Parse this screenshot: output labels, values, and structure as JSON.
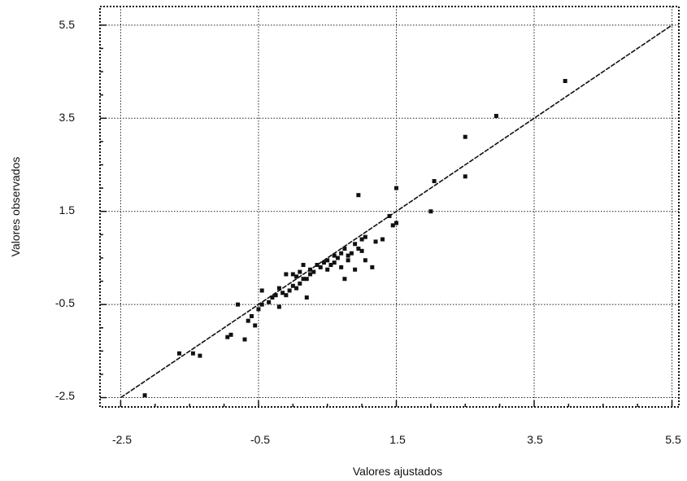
{
  "chart_data": {
    "type": "scatter",
    "title": "",
    "xlabel": "Valores ajustados",
    "ylabel": "Valores observados",
    "xlim": [
      -2.8,
      5.6
    ],
    "ylim": [
      -2.7,
      5.9
    ],
    "xticks": [
      "-2.5",
      "-0.5",
      "1.5",
      "3.5",
      "5.5"
    ],
    "yticks": [
      "5.5",
      "3.5",
      "1.5",
      "-0.5",
      "-2.5"
    ],
    "grid": true,
    "fit_line": {
      "x": [
        -2.5,
        5.5
      ],
      "y": [
        -2.5,
        5.5
      ]
    },
    "series": [
      {
        "points": [
          [
            -2.15,
            -2.45
          ],
          [
            -1.65,
            -1.55
          ],
          [
            -1.45,
            -1.55
          ],
          [
            -1.35,
            -1.6
          ],
          [
            -0.95,
            -1.2
          ],
          [
            -0.9,
            -1.15
          ],
          [
            -0.8,
            -0.5
          ],
          [
            -0.7,
            -1.25
          ],
          [
            -0.65,
            -0.85
          ],
          [
            -0.6,
            -0.75
          ],
          [
            -0.55,
            -0.95
          ],
          [
            -0.5,
            -0.6
          ],
          [
            -0.45,
            -0.5
          ],
          [
            -0.45,
            -0.2
          ],
          [
            -0.35,
            -0.45
          ],
          [
            -0.3,
            -0.35
          ],
          [
            -0.25,
            -0.3
          ],
          [
            -0.2,
            -0.55
          ],
          [
            -0.2,
            -0.15
          ],
          [
            -0.15,
            -0.25
          ],
          [
            -0.1,
            -0.3
          ],
          [
            -0.1,
            0.15
          ],
          [
            -0.05,
            -0.2
          ],
          [
            0.0,
            -0.1
          ],
          [
            0.0,
            0.15
          ],
          [
            0.05,
            -0.15
          ],
          [
            0.05,
            0.1
          ],
          [
            0.1,
            -0.05
          ],
          [
            0.1,
            0.2
          ],
          [
            0.15,
            0.05
          ],
          [
            0.15,
            0.35
          ],
          [
            0.2,
            0.05
          ],
          [
            0.2,
            -0.35
          ],
          [
            0.25,
            0.15
          ],
          [
            0.25,
            0.25
          ],
          [
            0.3,
            0.2
          ],
          [
            0.35,
            0.35
          ],
          [
            0.4,
            0.3
          ],
          [
            0.45,
            0.4
          ],
          [
            0.5,
            0.25
          ],
          [
            0.5,
            0.45
          ],
          [
            0.55,
            0.35
          ],
          [
            0.6,
            0.4
          ],
          [
            0.6,
            0.55
          ],
          [
            0.65,
            0.5
          ],
          [
            0.7,
            0.3
          ],
          [
            0.7,
            0.6
          ],
          [
            0.75,
            0.05
          ],
          [
            0.75,
            0.7
          ],
          [
            0.8,
            0.45
          ],
          [
            0.8,
            0.55
          ],
          [
            0.85,
            0.6
          ],
          [
            0.9,
            0.8
          ],
          [
            0.9,
            0.25
          ],
          [
            0.95,
            0.7
          ],
          [
            1.0,
            0.65
          ],
          [
            1.0,
            0.9
          ],
          [
            1.05,
            0.45
          ],
          [
            1.05,
            0.95
          ],
          [
            1.15,
            0.3
          ],
          [
            0.95,
            1.85
          ],
          [
            1.2,
            0.85
          ],
          [
            1.3,
            0.9
          ],
          [
            1.4,
            1.4
          ],
          [
            1.45,
            1.2
          ],
          [
            1.5,
            1.25
          ],
          [
            1.5,
            2.0
          ],
          [
            2.0,
            1.5
          ],
          [
            2.05,
            2.15
          ],
          [
            2.5,
            3.1
          ],
          [
            2.5,
            2.25
          ],
          [
            2.95,
            3.55
          ],
          [
            3.95,
            4.3
          ]
        ]
      }
    ]
  }
}
